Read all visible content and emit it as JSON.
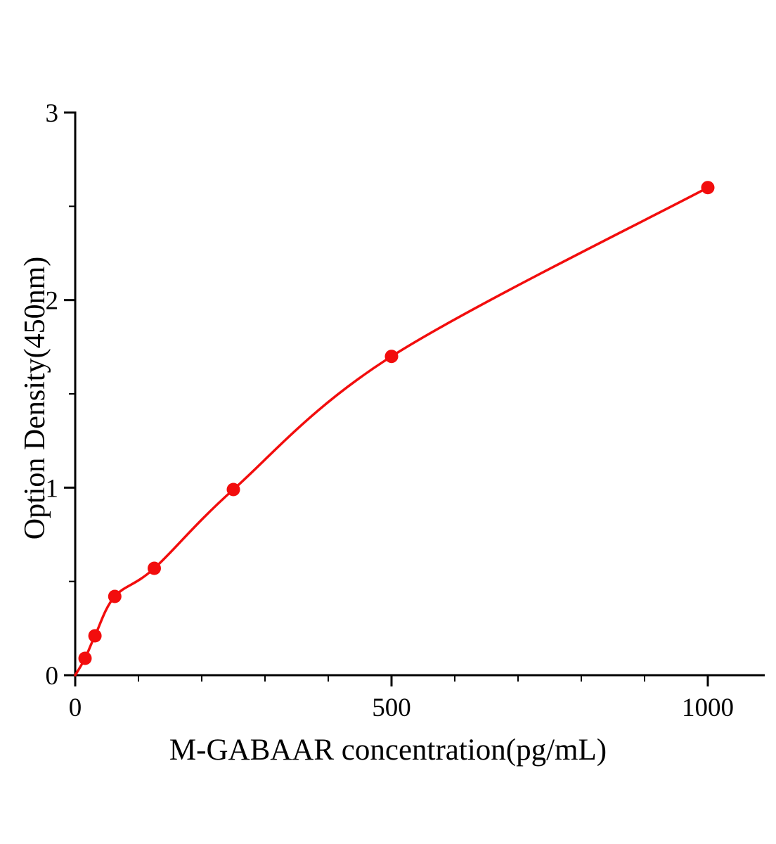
{
  "chart_data": {
    "type": "scatter",
    "title": "",
    "xlabel": "M-GABAAR concentration(pg/mL)",
    "ylabel": "Option Density(450nm)",
    "x": [
      15.6,
      31.25,
      62.5,
      125,
      250,
      500,
      1000
    ],
    "y": [
      0.09,
      0.21,
      0.42,
      0.57,
      0.99,
      1.7,
      2.6
    ],
    "curve_starts_at_origin": true,
    "xlim": [
      0,
      1090
    ],
    "ylim": [
      0,
      3
    ],
    "x_major_ticks": [
      0,
      500,
      1000
    ],
    "x_minor_step": 100,
    "y_major_ticks": [
      0,
      1,
      2,
      3
    ],
    "y_minor_step": 0.5,
    "grid": false,
    "legend": null,
    "line_color": "#f20d0d",
    "marker_color": "#f20d0d",
    "axis_color": "#000000",
    "background_color": "#ffffff"
  }
}
